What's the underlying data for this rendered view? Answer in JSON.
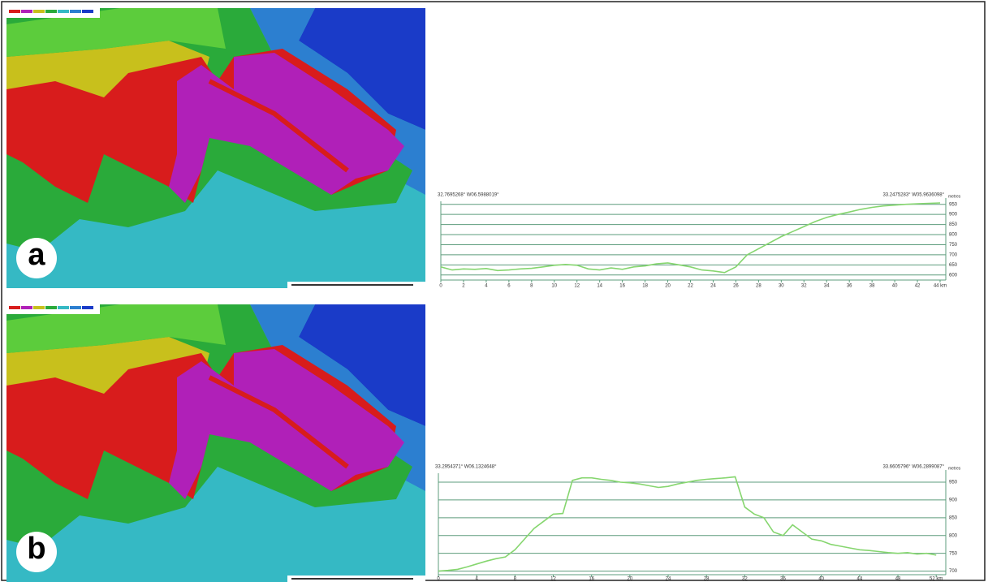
{
  "chart_data": [
    {
      "type": "line",
      "label": "a",
      "start_label": "32.7695268° W06.5988019°",
      "end_label": "33.2475283° W05.9636098°",
      "y_unit": "metres",
      "x": [
        0,
        1,
        2,
        3,
        4,
        5,
        6,
        7,
        8,
        9,
        10,
        11,
        12,
        13,
        14,
        15,
        16,
        17,
        18,
        19,
        20,
        21,
        22,
        23,
        24,
        25,
        26,
        27,
        28,
        29,
        30,
        31,
        32,
        33,
        34,
        35,
        36,
        37,
        38,
        39,
        40,
        41,
        42,
        43,
        44
      ],
      "values": [
        640,
        625,
        630,
        628,
        632,
        622,
        625,
        630,
        633,
        640,
        648,
        652,
        648,
        630,
        625,
        635,
        628,
        640,
        645,
        655,
        660,
        650,
        640,
        625,
        620,
        612,
        640,
        700,
        730,
        760,
        790,
        815,
        840,
        865,
        885,
        900,
        912,
        925,
        935,
        942,
        946,
        950,
        953,
        955,
        957
      ],
      "color": "#86d66f",
      "xlim": [
        0,
        44.5
      ],
      "xticks": [
        0,
        2,
        4,
        6,
        8,
        10,
        12,
        14,
        16,
        18,
        20,
        22,
        24,
        26,
        28,
        30,
        32,
        34,
        36,
        38,
        40,
        42,
        {
          "value": 44,
          "label": "44 km"
        }
      ],
      "ylim": [
        575,
        965
      ],
      "yticks": [
        600,
        650,
        700,
        750,
        800,
        850,
        900,
        950
      ],
      "grid": true
    },
    {
      "type": "line",
      "label": "b",
      "start_label": "33.2954371° W06.1324648°",
      "end_label": "33.6605796° W06.2899087°",
      "y_unit": "metres",
      "x": [
        0,
        1,
        2,
        3,
        4,
        5,
        6,
        7,
        8,
        9,
        10,
        11,
        12,
        13,
        14,
        15,
        16,
        17,
        18,
        19,
        20,
        21,
        22,
        23,
        24,
        25,
        26,
        27,
        28,
        29,
        30,
        31,
        32,
        33,
        34,
        35,
        36,
        37,
        38,
        39,
        40,
        41,
        42,
        43,
        44,
        45,
        46,
        47,
        48,
        49,
        50,
        51,
        52
      ],
      "values": [
        700,
        702,
        705,
        712,
        720,
        728,
        735,
        740,
        760,
        790,
        820,
        840,
        860,
        862,
        955,
        962,
        962,
        958,
        955,
        950,
        948,
        945,
        940,
        935,
        938,
        945,
        950,
        955,
        958,
        960,
        962,
        965,
        880,
        860,
        850,
        810,
        800,
        830,
        810,
        790,
        785,
        775,
        770,
        765,
        760,
        758,
        755,
        752,
        750,
        752,
        748,
        750,
        745
      ],
      "color": "#86d66f",
      "xlim": [
        0,
        53
      ],
      "xticks": [
        0,
        4,
        8,
        12,
        16,
        20,
        24,
        28,
        32,
        36,
        40,
        44,
        48,
        {
          "value": 52,
          "label": "52 km"
        }
      ],
      "ylim": [
        690,
        975
      ],
      "yticks": [
        700,
        750,
        800,
        850,
        900,
        950
      ],
      "grid": true
    }
  ]
}
